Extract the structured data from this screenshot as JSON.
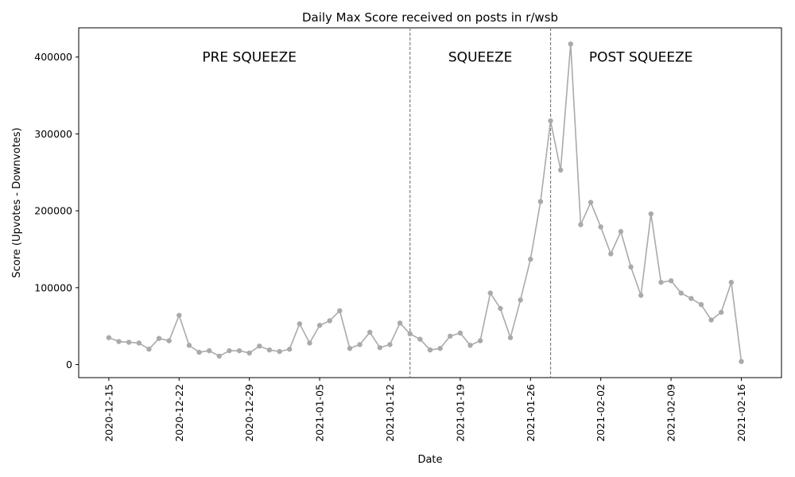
{
  "chart_data": {
    "type": "line",
    "title": "Daily Max Score received on posts in r/wsb",
    "xlabel": "Date",
    "ylabel": "Score (Upvotes - Downvotes)",
    "ylim": [
      -17000,
      438000
    ],
    "xlim": [
      "2020-12-12",
      "2021-02-20"
    ],
    "grid": false,
    "y_ticks": [
      0,
      100000,
      200000,
      300000,
      400000
    ],
    "x_ticks": [
      "2020-12-15",
      "2020-12-22",
      "2020-12-29",
      "2021-01-05",
      "2021-01-12",
      "2021-01-19",
      "2021-01-26",
      "2021-02-02",
      "2021-02-09",
      "2021-02-16"
    ],
    "line_color": "#aaaaaa",
    "vlines": [
      "2021-01-14",
      "2021-01-28"
    ],
    "vline_color": "#808080",
    "regions": [
      {
        "label": "PRE SQUEEZE",
        "x": "2020-12-29",
        "y": 400000
      },
      {
        "label": "SQUEEZE",
        "x": "2021-01-21",
        "y": 400000
      },
      {
        "label": "POST SQUEEZE",
        "x": "2021-02-06",
        "y": 400000
      }
    ],
    "series": [
      {
        "x": [
          "2020-12-15",
          "2020-12-16",
          "2020-12-17",
          "2020-12-18",
          "2020-12-19",
          "2020-12-20",
          "2020-12-21",
          "2020-12-22",
          "2020-12-23",
          "2020-12-24",
          "2020-12-25",
          "2020-12-26",
          "2020-12-27",
          "2020-12-28",
          "2020-12-29",
          "2020-12-30",
          "2020-12-31",
          "2021-01-01",
          "2021-01-02",
          "2021-01-03",
          "2021-01-04",
          "2021-01-05",
          "2021-01-06",
          "2021-01-07",
          "2021-01-08",
          "2021-01-09",
          "2021-01-10",
          "2021-01-11",
          "2021-01-12",
          "2021-01-13",
          "2021-01-14",
          "2021-01-15",
          "2021-01-16",
          "2021-01-17",
          "2021-01-18",
          "2021-01-19",
          "2021-01-20",
          "2021-01-21",
          "2021-01-22",
          "2021-01-23",
          "2021-01-24",
          "2021-01-25",
          "2021-01-26",
          "2021-01-27",
          "2021-01-28",
          "2021-01-29",
          "2021-01-30",
          "2021-01-31",
          "2021-02-01",
          "2021-02-02",
          "2021-02-03",
          "2021-02-04",
          "2021-02-05",
          "2021-02-06",
          "2021-02-07",
          "2021-02-08",
          "2021-02-09",
          "2021-02-10",
          "2021-02-11",
          "2021-02-12",
          "2021-02-13",
          "2021-02-14",
          "2021-02-15",
          "2021-02-16"
        ],
        "y": [
          35000,
          30000,
          29000,
          28000,
          20000,
          34000,
          31000,
          64000,
          25000,
          16000,
          18000,
          11000,
          18000,
          18000,
          15000,
          24000,
          19000,
          17000,
          20000,
          53000,
          28000,
          51000,
          57000,
          70000,
          21000,
          26000,
          42000,
          22000,
          26000,
          54000,
          40000,
          33000,
          19000,
          21000,
          37000,
          41000,
          25000,
          31000,
          93000,
          73000,
          35000,
          84000,
          137000,
          212000,
          317000,
          253000,
          417000,
          182000,
          211000,
          179000,
          144000,
          173000,
          127000,
          90000,
          196000,
          107000,
          109000,
          93000,
          86000,
          78000,
          58000,
          68000,
          107000,
          4000
        ]
      }
    ]
  }
}
